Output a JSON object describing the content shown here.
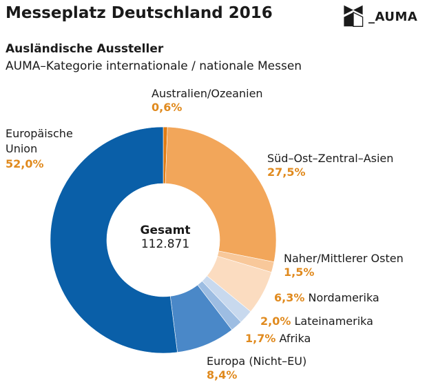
{
  "header": {
    "title": "Messeplatz Deutschland 2016",
    "subtitle": "Ausländische Aussteller",
    "subtitle2": "AUMA–Kategorie internationale / nationale Messen",
    "logo_text": "_AUMA"
  },
  "chart_data": {
    "type": "pie",
    "title": "Messeplatz Deutschland 2016",
    "subtitle": "Ausländische Aussteller",
    "center_title": "Gesamt",
    "center_value": "112.871",
    "slices": [
      {
        "label": "Australien/Ozeanien",
        "value": 0.6,
        "value_label": "0,6%",
        "color": "#e07b12"
      },
      {
        "label": "Süd–Ost–Zentral–Asien",
        "value": 27.5,
        "value_label": "27,5%",
        "color": "#f2a65a"
      },
      {
        "label": "Naher/Mittlerer Osten",
        "value": 1.5,
        "value_label": "1,5%",
        "color": "#f8c89a"
      },
      {
        "label": "Nordamerika",
        "value": 6.3,
        "value_label": "6,3%",
        "color": "#fbdcc0"
      },
      {
        "label": "Lateinamerika",
        "value": 2.0,
        "value_label": "2,0%",
        "color": "#c8d9ee"
      },
      {
        "label": "Afrika",
        "value": 1.7,
        "value_label": "1,7%",
        "color": "#9dbde2"
      },
      {
        "label": "Europa (Nicht–EU)",
        "value": 8.4,
        "value_label": "8,4%",
        "color": "#4a88c8"
      },
      {
        "label": "Europäische Union",
        "value": 52.0,
        "value_label": "52,0%",
        "color": "#0a5fa8"
      }
    ]
  }
}
